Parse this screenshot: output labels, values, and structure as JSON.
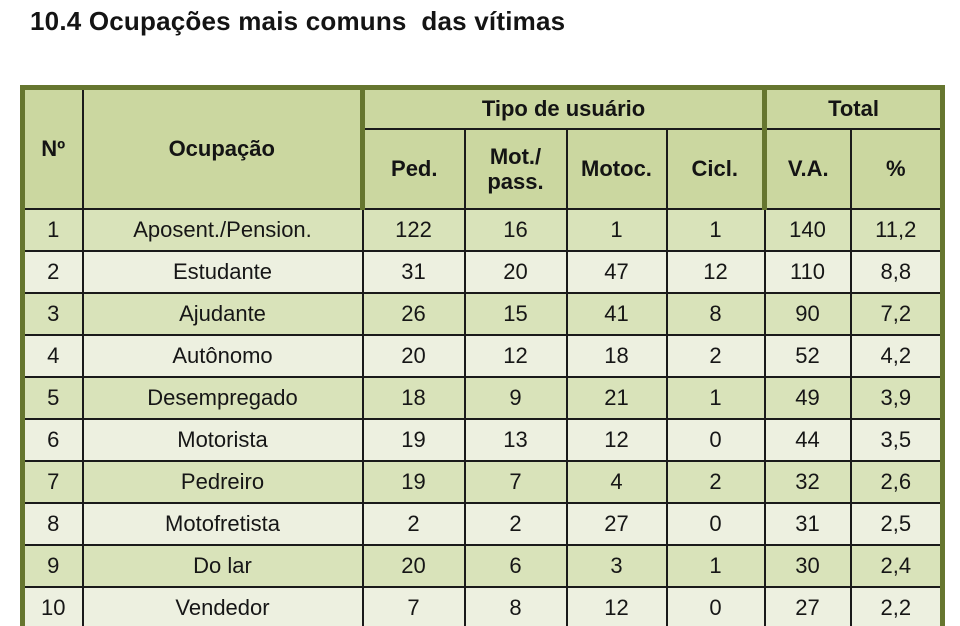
{
  "page": {
    "title": "10.4 Ocupações mais comuns  das vítimas"
  },
  "colors": {
    "page_background": "#ffffff",
    "table_frame_olive": "#66762f",
    "header_background": "#cbd7a0",
    "row_odd_background": "#d9e3ba",
    "row_even_background": "#edf0e0",
    "thin_grid_line": "#1a1a1a",
    "text": "#141414"
  },
  "table": {
    "header": {
      "col_no": "Nº",
      "col_ocupacao": "Ocupação",
      "group_tipo_usuario": "Tipo de usuário",
      "group_total": "Total",
      "col_ped": "Ped.",
      "col_mot_pass": "Mot./\npass.",
      "col_motoc": "Motoc.",
      "col_cicl": "Cicl.",
      "col_va": "V.A.",
      "col_pct": "%"
    },
    "rows": [
      {
        "no": "1",
        "ocupacao": "Aposent./Pension.",
        "ped": "122",
        "mot_pass": "16",
        "motoc": "1",
        "cicl": "1",
        "va": "140",
        "pct": "11,2"
      },
      {
        "no": "2",
        "ocupacao": "Estudante",
        "ped": "31",
        "mot_pass": "20",
        "motoc": "47",
        "cicl": "12",
        "va": "110",
        "pct": "8,8"
      },
      {
        "no": "3",
        "ocupacao": "Ajudante",
        "ped": "26",
        "mot_pass": "15",
        "motoc": "41",
        "cicl": "8",
        "va": "90",
        "pct": "7,2"
      },
      {
        "no": "4",
        "ocupacao": "Autônomo",
        "ped": "20",
        "mot_pass": "12",
        "motoc": "18",
        "cicl": "2",
        "va": "52",
        "pct": "4,2"
      },
      {
        "no": "5",
        "ocupacao": "Desempregado",
        "ped": "18",
        "mot_pass": "9",
        "motoc": "21",
        "cicl": "1",
        "va": "49",
        "pct": "3,9"
      },
      {
        "no": "6",
        "ocupacao": "Motorista",
        "ped": "19",
        "mot_pass": "13",
        "motoc": "12",
        "cicl": "0",
        "va": "44",
        "pct": "3,5"
      },
      {
        "no": "7",
        "ocupacao": "Pedreiro",
        "ped": "19",
        "mot_pass": "7",
        "motoc": "4",
        "cicl": "2",
        "va": "32",
        "pct": "2,6"
      },
      {
        "no": "8",
        "ocupacao": "Motofretista",
        "ped": "2",
        "mot_pass": "2",
        "motoc": "27",
        "cicl": "0",
        "va": "31",
        "pct": "2,5"
      },
      {
        "no": "9",
        "ocupacao": "Do lar",
        "ped": "20",
        "mot_pass": "6",
        "motoc": "3",
        "cicl": "1",
        "va": "30",
        "pct": "2,4"
      },
      {
        "no": "10",
        "ocupacao": "Vendedor",
        "ped": "7",
        "mot_pass": "8",
        "motoc": "12",
        "cicl": "0",
        "va": "27",
        "pct": "2,2"
      }
    ]
  }
}
